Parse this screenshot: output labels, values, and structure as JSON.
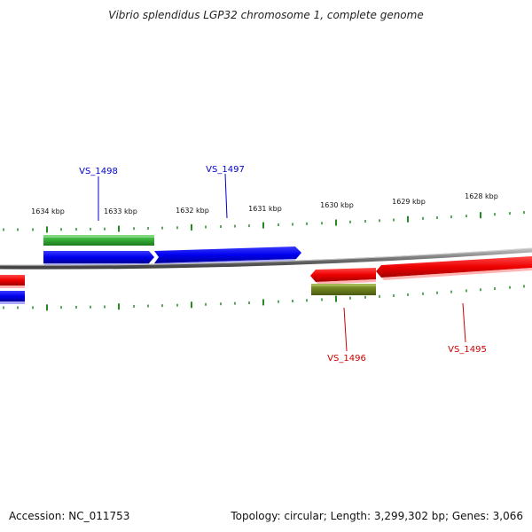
{
  "title": "Vibrio splendidus LGP32 chromosome 1, complete genome",
  "footer": {
    "accession": "Accession: NC_011753",
    "summary": "Topology: circular; Length: 3,299,302 bp; Genes: 3,066"
  },
  "ruler": {
    "tick_labels": [
      "1634 kbp",
      "1633 kbp",
      "1632 kbp",
      "1631 kbp",
      "1630 kbp",
      "1629 kbp",
      "1628 kbp"
    ]
  },
  "genes": [
    {
      "label": "VS_1498",
      "color": "#0000cc"
    },
    {
      "label": "VS_1497",
      "color": "#0000cc"
    },
    {
      "label": "VS_1496",
      "color": "#cc0000"
    },
    {
      "label": "VS_1495",
      "color": "#cc0000"
    }
  ],
  "colors": {
    "forward_cds": "#0000ee",
    "reverse_cds": "#ee0000",
    "forward_rna": "#33aa33",
    "reverse_rna": "#6b7f1f",
    "backbone": "#888888",
    "tick": "#228b22"
  }
}
